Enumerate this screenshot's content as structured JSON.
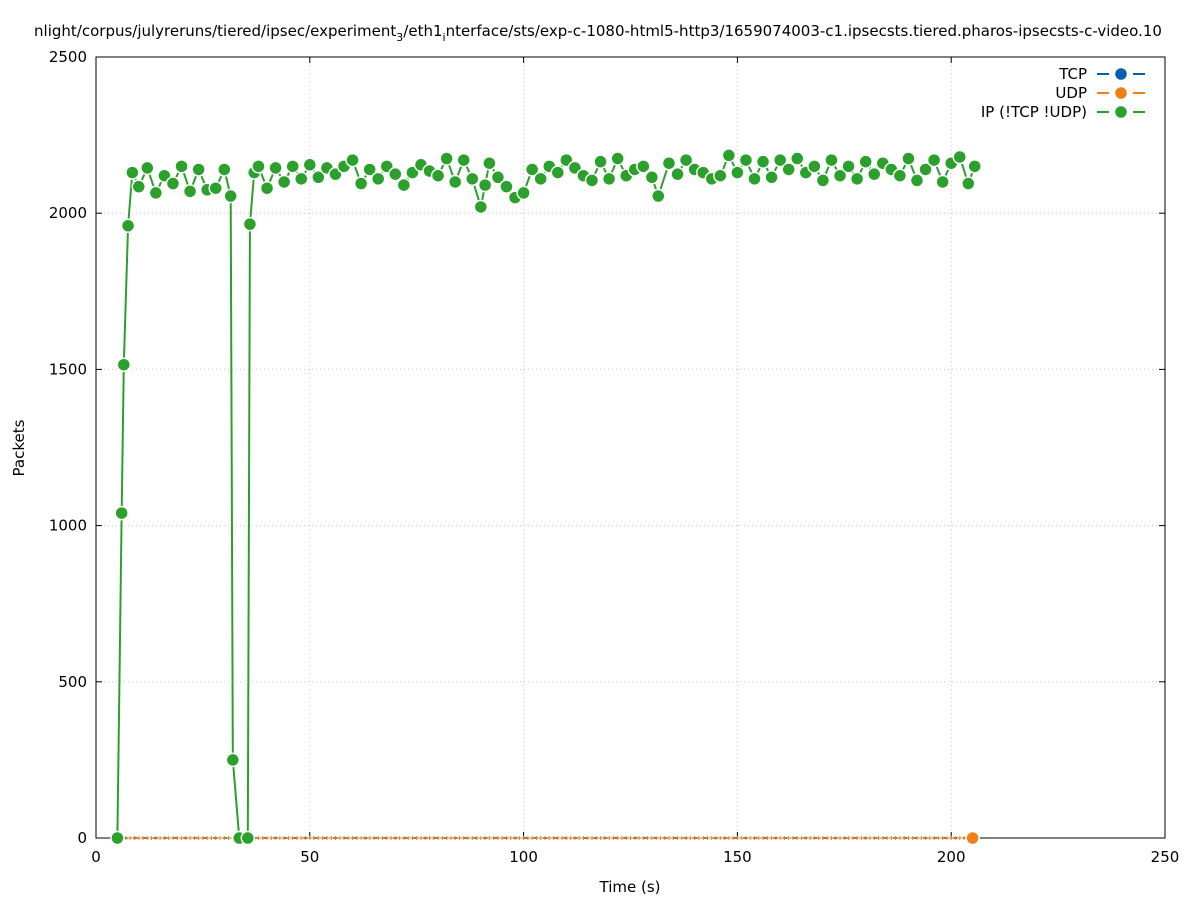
{
  "chart_data": {
    "type": "line",
    "title_parts": {
      "pre": "nlight/corpus/julyreruns/tiered/ipsec/experiment",
      "sub1": "3",
      "mid": "/eth1",
      "sub2": "i",
      "post": "nterface/sts/exp-c-1080-html5-http3/1659074003-c1.ipsecsts.tiered.pharos-ipsecsts-c-video.10"
    },
    "xlabel": "Time (s)",
    "ylabel": "Packets",
    "xlim": [
      0,
      250
    ],
    "ylim": [
      0,
      2500
    ],
    "xticks": [
      0,
      50,
      100,
      150,
      200,
      250
    ],
    "yticks": [
      0,
      500,
      1000,
      1500,
      2000,
      2500
    ],
    "grid": true,
    "legend_position": "top-right",
    "series": [
      {
        "name": "TCP",
        "color": "#0060ad",
        "x": [],
        "y": []
      },
      {
        "name": "UDP",
        "color": "#f07f16",
        "x": [
          5,
          6,
          7,
          8,
          9,
          10,
          11,
          12,
          13,
          14,
          15,
          16,
          17,
          18,
          19,
          20,
          21,
          22,
          23,
          24,
          25,
          26,
          27,
          28,
          29,
          30,
          31,
          32,
          33,
          34,
          35,
          36,
          37,
          38,
          39,
          40,
          41,
          42,
          43,
          44,
          45,
          46,
          47,
          48,
          49,
          50,
          51,
          52,
          53,
          54,
          55,
          56,
          57,
          58,
          59,
          60,
          61,
          62,
          63,
          64,
          65,
          66,
          67,
          68,
          69,
          70,
          71,
          72,
          73,
          74,
          75,
          76,
          77,
          78,
          79,
          80,
          81,
          82,
          83,
          84,
          85,
          86,
          87,
          88,
          89,
          90,
          91,
          92,
          93,
          94,
          95,
          96,
          97,
          98,
          99,
          100,
          101,
          102,
          103,
          104,
          105,
          106,
          107,
          108,
          109,
          110,
          111,
          112,
          113,
          114,
          115,
          116,
          117,
          118,
          119,
          120,
          121,
          122,
          123,
          124,
          125,
          126,
          127,
          128,
          129,
          130,
          131,
          132,
          133,
          134,
          135,
          136,
          137,
          138,
          139,
          140,
          141,
          142,
          143,
          144,
          145,
          146,
          147,
          148,
          149,
          150,
          151,
          152,
          153,
          154,
          155,
          156,
          157,
          158,
          159,
          160,
          161,
          162,
          163,
          164,
          165,
          166,
          167,
          168,
          169,
          170,
          171,
          172,
          173,
          174,
          175,
          176,
          177,
          178,
          179,
          180,
          181,
          182,
          183,
          184,
          185,
          186,
          187,
          188,
          189,
          190,
          191,
          192,
          193,
          194,
          195,
          196,
          197,
          198,
          199,
          200,
          201,
          202,
          203,
          204,
          205
        ],
        "y": [
          0,
          0,
          0,
          0,
          0,
          0,
          0,
          0,
          0,
          0,
          0,
          0,
          0,
          0,
          0,
          0,
          0,
          0,
          0,
          0,
          0,
          0,
          0,
          0,
          0,
          0,
          0,
          0,
          0,
          0,
          0,
          0,
          0,
          0,
          0,
          0,
          0,
          0,
          0,
          0,
          0,
          0,
          0,
          0,
          0,
          0,
          0,
          0,
          0,
          0,
          0,
          0,
          0,
          0,
          0,
          0,
          0,
          0,
          0,
          0,
          0,
          0,
          0,
          0,
          0,
          0,
          0,
          0,
          0,
          0,
          0,
          0,
          0,
          0,
          0,
          0,
          0,
          0,
          0,
          0,
          0,
          0,
          0,
          0,
          0,
          0,
          0,
          0,
          0,
          0,
          0,
          0,
          0,
          0,
          0,
          0,
          0,
          0,
          0,
          0,
          0,
          0,
          0,
          0,
          0,
          0,
          0,
          0,
          0,
          0,
          0,
          0,
          0,
          0,
          0,
          0,
          0,
          0,
          0,
          0,
          0,
          0,
          0,
          0,
          0,
          0,
          0,
          0,
          0,
          0,
          0,
          0,
          0,
          0,
          0,
          0,
          0,
          0,
          0,
          0,
          0,
          0,
          0,
          0,
          0,
          0,
          0,
          0,
          0,
          0,
          0,
          0,
          0,
          0,
          0,
          0,
          0,
          0,
          0,
          0,
          0,
          0,
          0,
          0,
          0,
          0,
          0,
          0,
          0,
          0,
          0,
          0,
          0,
          0,
          0,
          0,
          0,
          0,
          0,
          0,
          0,
          0,
          0,
          0,
          0,
          0,
          0,
          0,
          0,
          0,
          0,
          0,
          0,
          0,
          0,
          0,
          0,
          0,
          0,
          0,
          0
        ]
      },
      {
        "name": "IP (!TCP  !UDP)",
        "color": "#2ca02c",
        "x": [
          5,
          6,
          6.5,
          7.5,
          8.5,
          10,
          12,
          14,
          16,
          18,
          20,
          22,
          24,
          26,
          28,
          30,
          31.5,
          32,
          33.5,
          35.5,
          36,
          37,
          38,
          40,
          42,
          44,
          46,
          48,
          50,
          52,
          54,
          56,
          58,
          60,
          62,
          64,
          66,
          68,
          70,
          72,
          74,
          76,
          78,
          80,
          82,
          84,
          86,
          88,
          90,
          91,
          92,
          94,
          96,
          98,
          100,
          102,
          104,
          106,
          108,
          110,
          112,
          114,
          116,
          118,
          120,
          122,
          124,
          126,
          128,
          130,
          131.5,
          134,
          136,
          138,
          140,
          142,
          144,
          146,
          148,
          150,
          152,
          154,
          156,
          158,
          160,
          162,
          164,
          166,
          168,
          170,
          172,
          174,
          176,
          178,
          180,
          182,
          184,
          186,
          188,
          190,
          192,
          194,
          196,
          198,
          200,
          202,
          204,
          205.5
        ],
        "y": [
          0,
          1040,
          1515,
          1960,
          2130,
          2085,
          2145,
          2065,
          2120,
          2095,
          2150,
          2070,
          2140,
          2075,
          2080,
          2140,
          2055,
          250,
          0,
          0,
          1965,
          2130,
          2150,
          2080,
          2145,
          2100,
          2150,
          2110,
          2155,
          2115,
          2145,
          2125,
          2150,
          2170,
          2095,
          2140,
          2110,
          2150,
          2125,
          2090,
          2130,
          2155,
          2135,
          2120,
          2175,
          2100,
          2170,
          2110,
          2020,
          2090,
          2160,
          2115,
          2085,
          2050,
          2065,
          2140,
          2110,
          2150,
          2130,
          2170,
          2145,
          2120,
          2105,
          2165,
          2110,
          2175,
          2120,
          2140,
          2150,
          2115,
          2055,
          2160,
          2125,
          2170,
          2140,
          2130,
          2110,
          2120,
          2185,
          2130,
          2170,
          2110,
          2165,
          2115,
          2170,
          2140,
          2175,
          2130,
          2150,
          2105,
          2170,
          2120,
          2150,
          2110,
          2165,
          2125,
          2160,
          2140,
          2120,
          2175,
          2105,
          2140,
          2170,
          2100,
          2160,
          2180,
          2095,
          2150
        ]
      }
    ]
  }
}
